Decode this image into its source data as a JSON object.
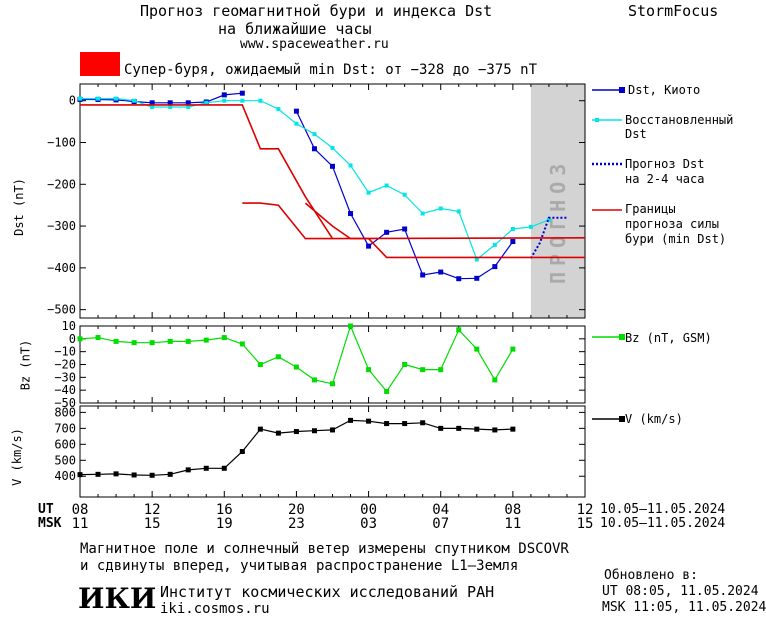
{
  "header": {
    "title_line1": "Прогноз геомагнитной бури и индекса Dst",
    "title_line2": "на ближайшие часы",
    "site": "www.spaceweather.ru",
    "brand": "StormFocus"
  },
  "storm_banner": {
    "text": "Супер-буря, ожидаемый min Dst: от −328 до −375 nT",
    "color": "#ff0000"
  },
  "forecast_zone_label": "ПРОГНОЗ",
  "legend": {
    "dst_kyoto": "Dst, Киото",
    "restored_1": "Восстановленный",
    "restored_2": "Dst",
    "forecast_1": "Прогноз Dst",
    "forecast_2": "на 2-4 часа",
    "bounds_1": "Границы",
    "bounds_2": "прогноза силы",
    "bounds_3": "бури (min Dst)",
    "bz": "Bz (nT, GSM)",
    "v": "V (km/s)"
  },
  "axes": {
    "dst_label": "Dst (nT)",
    "bz_label": "Bz (nT)",
    "v_label": "V (km/s)",
    "ut_label": "UT",
    "msk_label": "MSK",
    "ut_ticks": [
      "08",
      "12",
      "16",
      "20",
      "00",
      "04",
      "08",
      "12"
    ],
    "msk_ticks": [
      "11",
      "15",
      "19",
      "23",
      "03",
      "07",
      "11",
      "15"
    ],
    "date_ut": "10.05–11.05.2024",
    "date_msk": "10.05–11.05.2024"
  },
  "footer": {
    "line1": "Магнитное поле и солнечный ветер измерены спутником DSCOVR",
    "line2": "и сдвинуты вперед, учитывая распространение L1–Земля",
    "updated_label": "Обновлено в:",
    "updated_ut": "UT  08:05, 11.05.2024",
    "updated_msk": "MSK 11:05, 11.05.2024",
    "institute": "Институт космических исследований РАН",
    "institute_url": "iki.cosmos.ru",
    "logo_text": "ИКИ"
  },
  "colors": {
    "dst_kyoto": "#0000cc",
    "restored": "#00e5e5",
    "forecast": "#0000cc",
    "bounds": "#dd0000",
    "bz": "#00dd00",
    "v": "#000000",
    "forecast_zone": "#d3d3d3"
  },
  "chart_data": [
    {
      "type": "line",
      "panel": "Dst",
      "x_unit": "hours UT (from 08:00 10.05)",
      "xlim": [
        0,
        28
      ],
      "ylim": [
        -520,
        40
      ],
      "ylabel": "Dst (nT)",
      "yticks": [
        0,
        -100,
        -200,
        -300,
        -400,
        -500
      ],
      "forecast_zone": [
        25,
        28
      ],
      "series": [
        {
          "name": "Dst, Киото",
          "x": [
            0,
            1,
            2,
            3,
            4,
            5,
            6,
            7,
            8,
            9,
            10,
            11,
            12,
            13,
            14,
            15,
            16,
            17,
            18,
            19,
            20,
            21,
            22,
            23,
            24
          ],
          "y": [
            3,
            3,
            2,
            -2,
            -5,
            -5,
            -5,
            -3,
            14,
            18,
            null,
            null,
            -25,
            -115,
            -157,
            -270,
            -348,
            -315,
            -307,
            -417,
            -410,
            -426,
            -425,
            -397,
            -337
          ]
        },
        {
          "name": "Восстановленный Dst",
          "x": [
            0,
            1,
            2,
            3,
            4,
            5,
            6,
            7,
            8,
            9,
            10,
            11,
            12,
            13,
            14,
            15,
            16,
            17,
            18,
            19,
            20,
            21,
            22,
            23,
            24,
            25,
            26
          ],
          "y": [
            5,
            5,
            5,
            0,
            -15,
            -15,
            -15,
            -5,
            0,
            0,
            0,
            -20,
            -55,
            -80,
            -113,
            -155,
            -220,
            -203,
            -225,
            -270,
            -258,
            -265,
            -380,
            -345,
            -307,
            -302,
            -285
          ]
        },
        {
          "name": "Прогноз Dst на 2-4 часа",
          "x": [
            25,
            25.5,
            26,
            26.5,
            27
          ],
          "y": [
            -377,
            -340,
            -280,
            -280,
            -280
          ]
        },
        {
          "name": "Границы прогноза силы бури (min Dst)",
          "segments": [
            {
              "x": [
                0,
                9,
                10,
                11,
                12.5,
                14
              ],
              "y": [
                -10,
                -10,
                -115,
                -115,
                -230,
                -330
              ]
            },
            {
              "x": [
                9,
                10,
                11,
                12.5,
                14,
                28
              ],
              "y": [
                -245,
                -245,
                -250,
                -330,
                -330,
                -328
              ]
            },
            {
              "x": [
                12.5,
                14,
                15,
                16,
                17,
                18,
                28
              ],
              "y": [
                -245,
                -300,
                -330,
                -330,
                -375,
                -375,
                -375
              ]
            }
          ]
        }
      ]
    },
    {
      "type": "line",
      "panel": "Bz",
      "x_unit": "hours UT (from 08:00 10.05)",
      "xlim": [
        0,
        28
      ],
      "ylim": [
        -50,
        10
      ],
      "ylabel": "Bz (nT)",
      "yticks": [
        10,
        0,
        -10,
        -20,
        -30,
        -40,
        -50
      ],
      "series": [
        {
          "name": "Bz (nT, GSM)",
          "x": [
            0,
            1,
            2,
            3,
            4,
            5,
            6,
            7,
            8,
            9,
            10,
            11,
            12,
            13,
            14,
            15,
            16,
            17,
            18,
            19,
            20,
            21,
            22,
            23,
            24,
            25,
            26
          ],
          "y": [
            0,
            1,
            -2,
            -3,
            -3,
            -2,
            -2,
            -1,
            1,
            -4,
            -20,
            -14,
            -22,
            -32,
            -35,
            10,
            -24,
            -41,
            -20,
            -24,
            -24,
            7,
            -8,
            -32,
            -8,
            null,
            null
          ]
        }
      ]
    },
    {
      "type": "line",
      "panel": "V",
      "x_unit": "hours UT (from 08:00 10.05)",
      "xlim": [
        0,
        28
      ],
      "ylim": [
        270,
        840
      ],
      "ylabel": "V (km/s)",
      "yticks": [
        800,
        700,
        600,
        500,
        400
      ],
      "series": [
        {
          "name": "V (km/s)",
          "x": [
            0,
            1,
            2,
            3,
            4,
            5,
            6,
            7,
            8,
            9,
            10,
            11,
            12,
            13,
            14,
            15,
            16,
            17,
            18,
            19,
            20,
            21,
            22,
            23,
            24,
            25,
            26
          ],
          "y": [
            410,
            412,
            415,
            408,
            406,
            412,
            440,
            450,
            450,
            555,
            695,
            670,
            680,
            685,
            690,
            750,
            745,
            730,
            730,
            735,
            700,
            700,
            695,
            690,
            695,
            null,
            null
          ]
        }
      ]
    }
  ]
}
